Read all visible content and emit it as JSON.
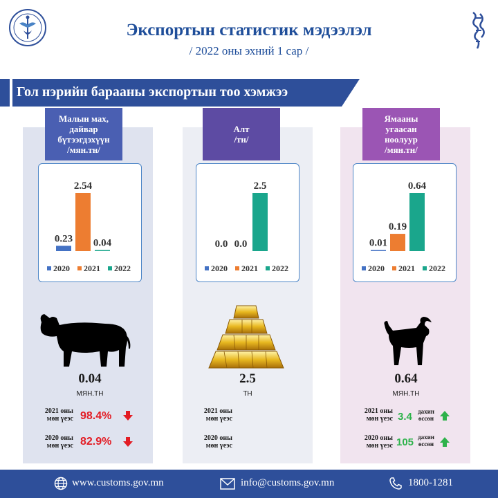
{
  "header": {
    "title": "Экспортын статистик мэдээлэл",
    "subtitle": "/ 2022 оны эхний  1 сар /"
  },
  "section": {
    "title": "Гол нэрийн барааны экспортын тоо хэмжээ"
  },
  "colors": {
    "y2020": "#4472c4",
    "y2021": "#ed7d31",
    "y2022": "#1aa68c",
    "primary": "#2e4f9a",
    "decrease": "#e31c24",
    "increase": "#2eb24b"
  },
  "panels": [
    {
      "label_lines": [
        "Малын мах,",
        "дайвар",
        "бүтээгдэхүүн",
        "/мян.тн/"
      ],
      "icon": "cow-icon",
      "value": "0.04",
      "unit": "МЯН.ТН",
      "cmp2021": {
        "label_lines": [
          "2021 оны",
          "мөн үеэс"
        ],
        "value": "98.4%",
        "direction": "down"
      },
      "cmp2020": {
        "label_lines": [
          "2020 оны",
          "мөн үеэс"
        ],
        "value": "82.9%",
        "direction": "down"
      }
    },
    {
      "label_lines": [
        "Алт",
        "/тн/"
      ],
      "icon": "gold-bars-icon",
      "value": "2.5",
      "unit": "ТН",
      "cmp2021": {
        "label_lines": [
          "2021 оны",
          "мөн үеэс"
        ]
      },
      "cmp2020": {
        "label_lines": [
          "2020 оны",
          "мөн үеэс"
        ]
      }
    },
    {
      "label_lines": [
        "Ямааны",
        "угаасан",
        "ноолуур",
        "/мян.тн/"
      ],
      "icon": "goat-icon",
      "value": "0.64",
      "unit": "МЯН.ТН",
      "cmp2021": {
        "label_lines": [
          "2021 оны",
          "мөн үеэс"
        ],
        "value": "3.4",
        "small_lines": [
          "дахин",
          "өссөн"
        ],
        "direction": "up"
      },
      "cmp2020": {
        "label_lines": [
          "2020 оны",
          "мөн үеэс"
        ],
        "value": "105",
        "small_lines": [
          "дахин",
          "өссөн"
        ],
        "direction": "up"
      }
    }
  ],
  "chart_data": [
    {
      "type": "bar",
      "title": "Малын мах, дайвар бүтээгдэхүүн /мян.тн/",
      "categories": [
        "2020",
        "2021",
        "2022"
      ],
      "values": [
        0.23,
        2.54,
        0.04
      ],
      "labels": [
        "0.23",
        "2.54",
        "0.04"
      ],
      "ylim": [
        0,
        2.54
      ],
      "legend": "bottom",
      "grid": false
    },
    {
      "type": "bar",
      "title": "Алт /тн/",
      "categories": [
        "2020",
        "2021",
        "2022"
      ],
      "values": [
        0.0,
        0.0,
        2.5
      ],
      "labels": [
        "0.0",
        "0.0",
        "2.5"
      ],
      "ylim": [
        0,
        2.5
      ],
      "legend": "bottom",
      "grid": false
    },
    {
      "type": "bar",
      "title": "Ямааны угаасан ноолуур /мян.тн/",
      "categories": [
        "2020",
        "2021",
        "2022"
      ],
      "values": [
        0.01,
        0.19,
        0.64
      ],
      "labels": [
        "0.01",
        "0.19",
        "0.64"
      ],
      "ylim": [
        0,
        0.64
      ],
      "legend": "bottom",
      "grid": false
    }
  ],
  "footer": {
    "website": "www.customs.gov.mn",
    "email": "info@customs.gov.mn",
    "phone": "1800-1281"
  }
}
